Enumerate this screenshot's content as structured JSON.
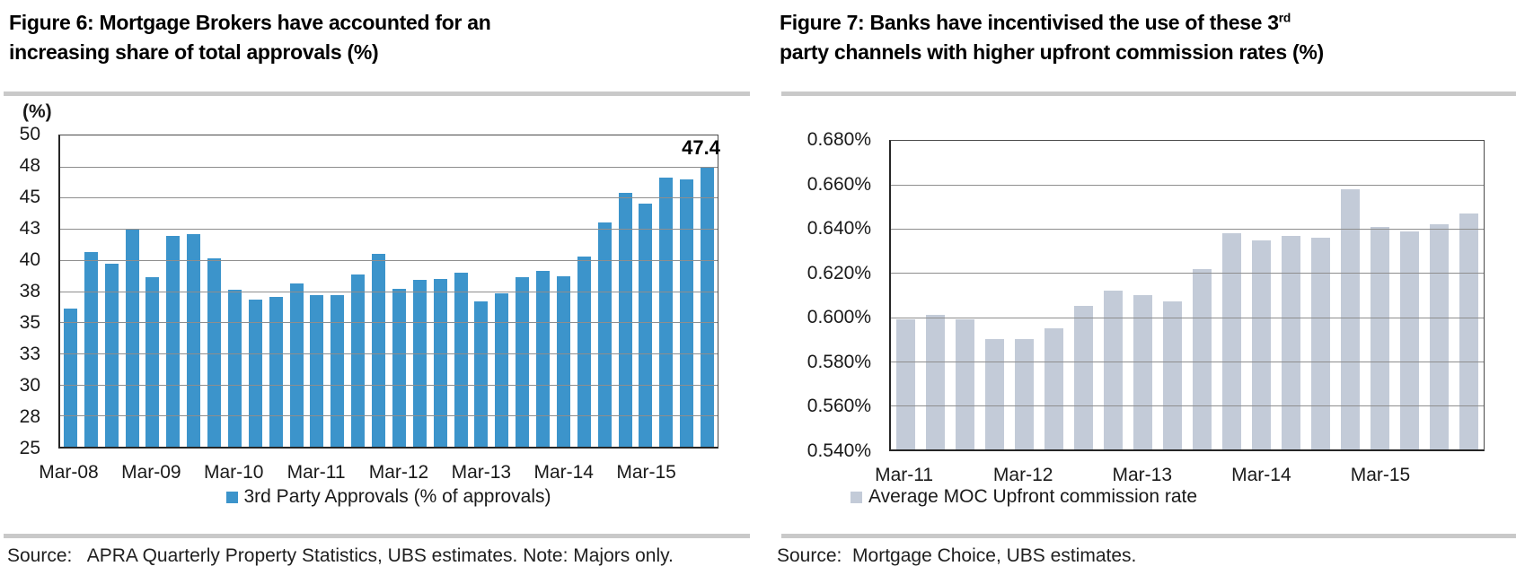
{
  "figure6": {
    "title_line1": "Figure 6: Mortgage Brokers have accounted for an",
    "title_line2": "increasing share of total approvals (%)",
    "y_unit": "(%)",
    "annotation": "47.4",
    "legend": "3rd Party Approvals (% of approvals)",
    "source": "Source:   APRA Quarterly Property Statistics, UBS estimates. Note: Majors only."
  },
  "figure7": {
    "title_line1_pre": "Figure 7: Banks have incentivised the use of these 3",
    "title_line1_sup": "rd",
    "title_line2": "party channels with higher upfront commission rates (%)",
    "legend": "Average MOC Upfront commission rate",
    "source": "Source:  Mortgage Choice, UBS estimates."
  },
  "chart_data": [
    {
      "type": "bar",
      "title": "Figure 6: Mortgage Brokers have accounted for an increasing share of total approvals (%)",
      "ylabel": "(%)",
      "xlabel": "",
      "ylim": [
        25,
        50
      ],
      "grid": "horizontal",
      "legend_position": "bottom",
      "legend": [
        "3rd Party Approvals (% of approvals)"
      ],
      "bar_color": "#3C94CB",
      "y_ticks": [
        {
          "label": "50",
          "value": 50
        },
        {
          "label": "48",
          "value": 47.5
        },
        {
          "label": "45",
          "value": 45
        },
        {
          "label": "43",
          "value": 42.5
        },
        {
          "label": "40",
          "value": 40
        },
        {
          "label": "38",
          "value": 37.5
        },
        {
          "label": "35",
          "value": 35
        },
        {
          "label": "33",
          "value": 32.5
        },
        {
          "label": "30",
          "value": 30
        },
        {
          "label": "28",
          "value": 27.5
        },
        {
          "label": "25",
          "value": 25
        }
      ],
      "x_tick_labels": [
        "Mar-08",
        "Mar-09",
        "Mar-10",
        "Mar-11",
        "Mar-12",
        "Mar-13",
        "Mar-14",
        "Mar-15"
      ],
      "x_tick_every": 4,
      "categories": [
        "Mar-08",
        "Jun-08",
        "Sep-08",
        "Dec-08",
        "Mar-09",
        "Jun-09",
        "Sep-09",
        "Dec-09",
        "Mar-10",
        "Jun-10",
        "Sep-10",
        "Dec-10",
        "Mar-11",
        "Jun-11",
        "Sep-11",
        "Dec-11",
        "Mar-12",
        "Jun-12",
        "Sep-12",
        "Dec-12",
        "Mar-13",
        "Jun-13",
        "Sep-13",
        "Dec-13",
        "Mar-14",
        "Jun-14",
        "Sep-14",
        "Dec-14",
        "Mar-15",
        "Jun-15",
        "Sep-15",
        "Dec-15"
      ],
      "values": [
        36.1,
        40.6,
        39.7,
        42.5,
        38.6,
        41.9,
        42.1,
        40.1,
        37.6,
        36.8,
        37.0,
        38.1,
        37.2,
        37.2,
        38.8,
        40.5,
        37.7,
        38.4,
        38.5,
        39.0,
        36.7,
        37.3,
        38.6,
        39.1,
        38.7,
        40.3,
        43.0,
        45.4,
        44.5,
        46.6,
        46.5,
        47.4
      ],
      "data_label": {
        "text": "47.4",
        "index": 31
      }
    },
    {
      "type": "bar",
      "title": "Figure 7: Banks have incentivised the use of these 3rd party channels with higher upfront commission rates (%)",
      "ylabel": "",
      "xlabel": "",
      "ylim": [
        0.54,
        0.68
      ],
      "grid": "horizontal",
      "legend_position": "bottom",
      "legend": [
        "Average MOC Upfront commission rate"
      ],
      "bar_color": "#C3CBD8",
      "y_ticks": [
        {
          "label": "0.680%",
          "value": 0.68
        },
        {
          "label": "0.660%",
          "value": 0.66
        },
        {
          "label": "0.640%",
          "value": 0.64
        },
        {
          "label": "0.620%",
          "value": 0.62
        },
        {
          "label": "0.600%",
          "value": 0.6
        },
        {
          "label": "0.580%",
          "value": 0.58
        },
        {
          "label": "0.560%",
          "value": 0.56
        },
        {
          "label": "0.540%",
          "value": 0.54
        }
      ],
      "x_tick_labels": [
        "Mar-11",
        "Mar-12",
        "Mar-13",
        "Mar-14",
        "Mar-15"
      ],
      "x_tick_every": 4,
      "categories": [
        "Mar-11",
        "Jun-11",
        "Sep-11",
        "Dec-11",
        "Mar-12",
        "Jun-12",
        "Sep-12",
        "Dec-12",
        "Mar-13",
        "Jun-13",
        "Sep-13",
        "Dec-13",
        "Mar-14",
        "Jun-14",
        "Sep-14",
        "Dec-14",
        "Mar-15",
        "Jun-15",
        "Sep-15",
        "Dec-15"
      ],
      "values": [
        0.599,
        0.601,
        0.599,
        0.59,
        0.59,
        0.595,
        0.605,
        0.612,
        0.61,
        0.607,
        0.622,
        0.638,
        0.635,
        0.637,
        0.636,
        0.658,
        0.641,
        0.639,
        0.642,
        0.647
      ]
    }
  ]
}
